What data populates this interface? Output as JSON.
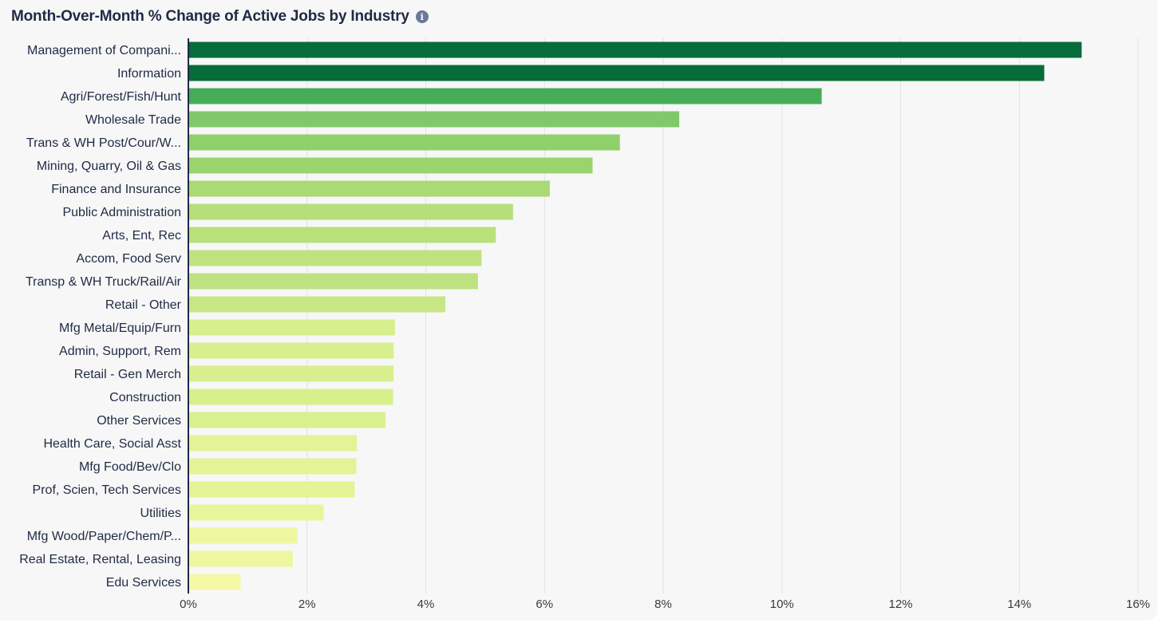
{
  "header": {
    "title": "Month-Over-Month % Change of Active Jobs by Industry",
    "info_icon": "info-icon"
  },
  "chart_data": {
    "type": "bar",
    "orientation": "horizontal",
    "title": "Month-Over-Month % Change of Active Jobs by Industry",
    "xlabel": "",
    "ylabel": "",
    "xlim": [
      0,
      16
    ],
    "x_ticks": [
      "0%",
      "2%",
      "4%",
      "6%",
      "8%",
      "10%",
      "12%",
      "14%",
      "16%"
    ],
    "grid": "vertical",
    "categories": [
      "Management of Compani...",
      "Information",
      "Agri/Forest/Fish/Hunt",
      "Wholesale Trade",
      "Trans & WH Post/Cour/W...",
      "Mining, Quarry, Oil & Gas",
      "Finance and Insurance",
      "Public Administration",
      "Arts, Ent, Rec",
      "Accom, Food Serv",
      "Transp & WH Truck/Rail/Air",
      "Retail - Other",
      "Mfg Metal/Equip/Furn",
      "Admin, Support, Rem",
      "Retail - Gen Merch",
      "Construction",
      "Other Services",
      "Health Care, Social Asst",
      "Mfg Food/Bev/Clo",
      "Prof, Scien, Tech Services",
      "Utilities",
      "Mfg Wood/Paper/Chem/P...",
      "Real Estate, Rental, Leasing",
      "Edu Services"
    ],
    "values": [
      15.05,
      14.42,
      10.67,
      8.27,
      7.27,
      6.81,
      6.09,
      5.47,
      5.18,
      4.94,
      4.88,
      4.33,
      3.48,
      3.46,
      3.46,
      3.45,
      3.32,
      2.84,
      2.83,
      2.8,
      2.28,
      1.84,
      1.76,
      0.88
    ],
    "colors": [
      "#066c39",
      "#066c39",
      "#45ad58",
      "#80c96a",
      "#8fd06b",
      "#99d46d",
      "#a9da73",
      "#b6df7a",
      "#bae07c",
      "#bfe281",
      "#bfe281",
      "#c8e686",
      "#d8ef8e",
      "#d8ef8e",
      "#d8ef8e",
      "#d8ef8e",
      "#daf08f",
      "#e3f396",
      "#e3f396",
      "#e3f396",
      "#e9f59a",
      "#eef6a0",
      "#eef6a0",
      "#f5f8a6"
    ]
  }
}
